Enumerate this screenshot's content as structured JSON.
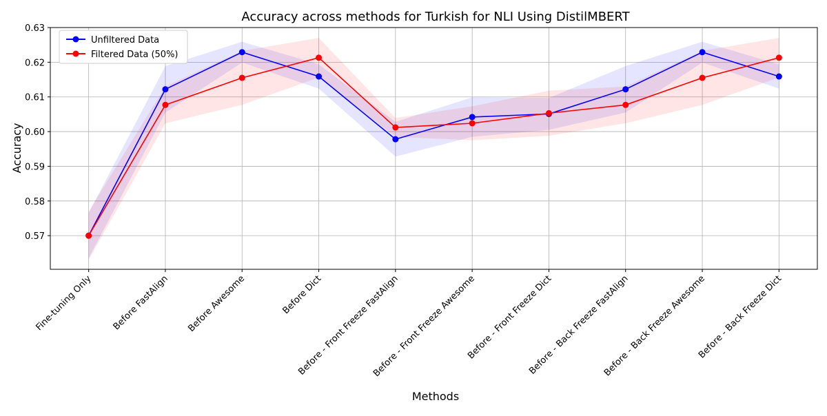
{
  "chart_data": {
    "type": "line",
    "title": "Accuracy across methods for Turkish for NLI Using DistilMBERT",
    "xlabel": "Methods",
    "ylabel": "Accuracy",
    "categories": [
      "Fine-tuning Only",
      "Before FastAlign",
      "Before Awesome",
      "Before Dict",
      "Before - Front Freeze FastAlign",
      "Before - Front Freeze Awesome",
      "Before - Front Freeze Dict",
      "Before - Back Freeze FastAlign",
      "Before - Back Freeze Awesome",
      "Before - Back Freeze Dict"
    ],
    "ylim": [
      0.5603,
      0.63
    ],
    "yticks": [
      "0.57",
      "0.58",
      "0.59",
      "0.60",
      "0.61",
      "0.62",
      "0.63"
    ],
    "grid": true,
    "legend_position": "top-left",
    "series": [
      {
        "name": "Unfiltered Data",
        "color": "#0000ff",
        "values": [
          0.57,
          0.6122,
          0.6229,
          0.6159,
          0.5978,
          0.6042,
          0.6051,
          0.6122,
          0.6229,
          0.6159
        ],
        "band_lower": [
          0.5635,
          0.6055,
          0.6199,
          0.6124,
          0.5928,
          0.5985,
          0.6005,
          0.6055,
          0.6199,
          0.6124
        ],
        "band_upper": [
          0.5765,
          0.6189,
          0.6259,
          0.6194,
          0.6028,
          0.6099,
          0.6097,
          0.6189,
          0.6259,
          0.6194
        ]
      },
      {
        "name": "Filtered Data (50%)",
        "color": "#ff0000",
        "values": [
          0.57,
          0.6077,
          0.6155,
          0.6213,
          0.6012,
          0.6024,
          0.6053,
          0.6077,
          0.6155,
          0.6213
        ],
        "band_lower": [
          0.563,
          0.6024,
          0.6077,
          0.6156,
          0.5985,
          0.5975,
          0.5988,
          0.6024,
          0.6077,
          0.6156
        ],
        "band_upper": [
          0.577,
          0.613,
          0.6233,
          0.627,
          0.6039,
          0.6073,
          0.6118,
          0.613,
          0.6233,
          0.627
        ]
      }
    ]
  }
}
